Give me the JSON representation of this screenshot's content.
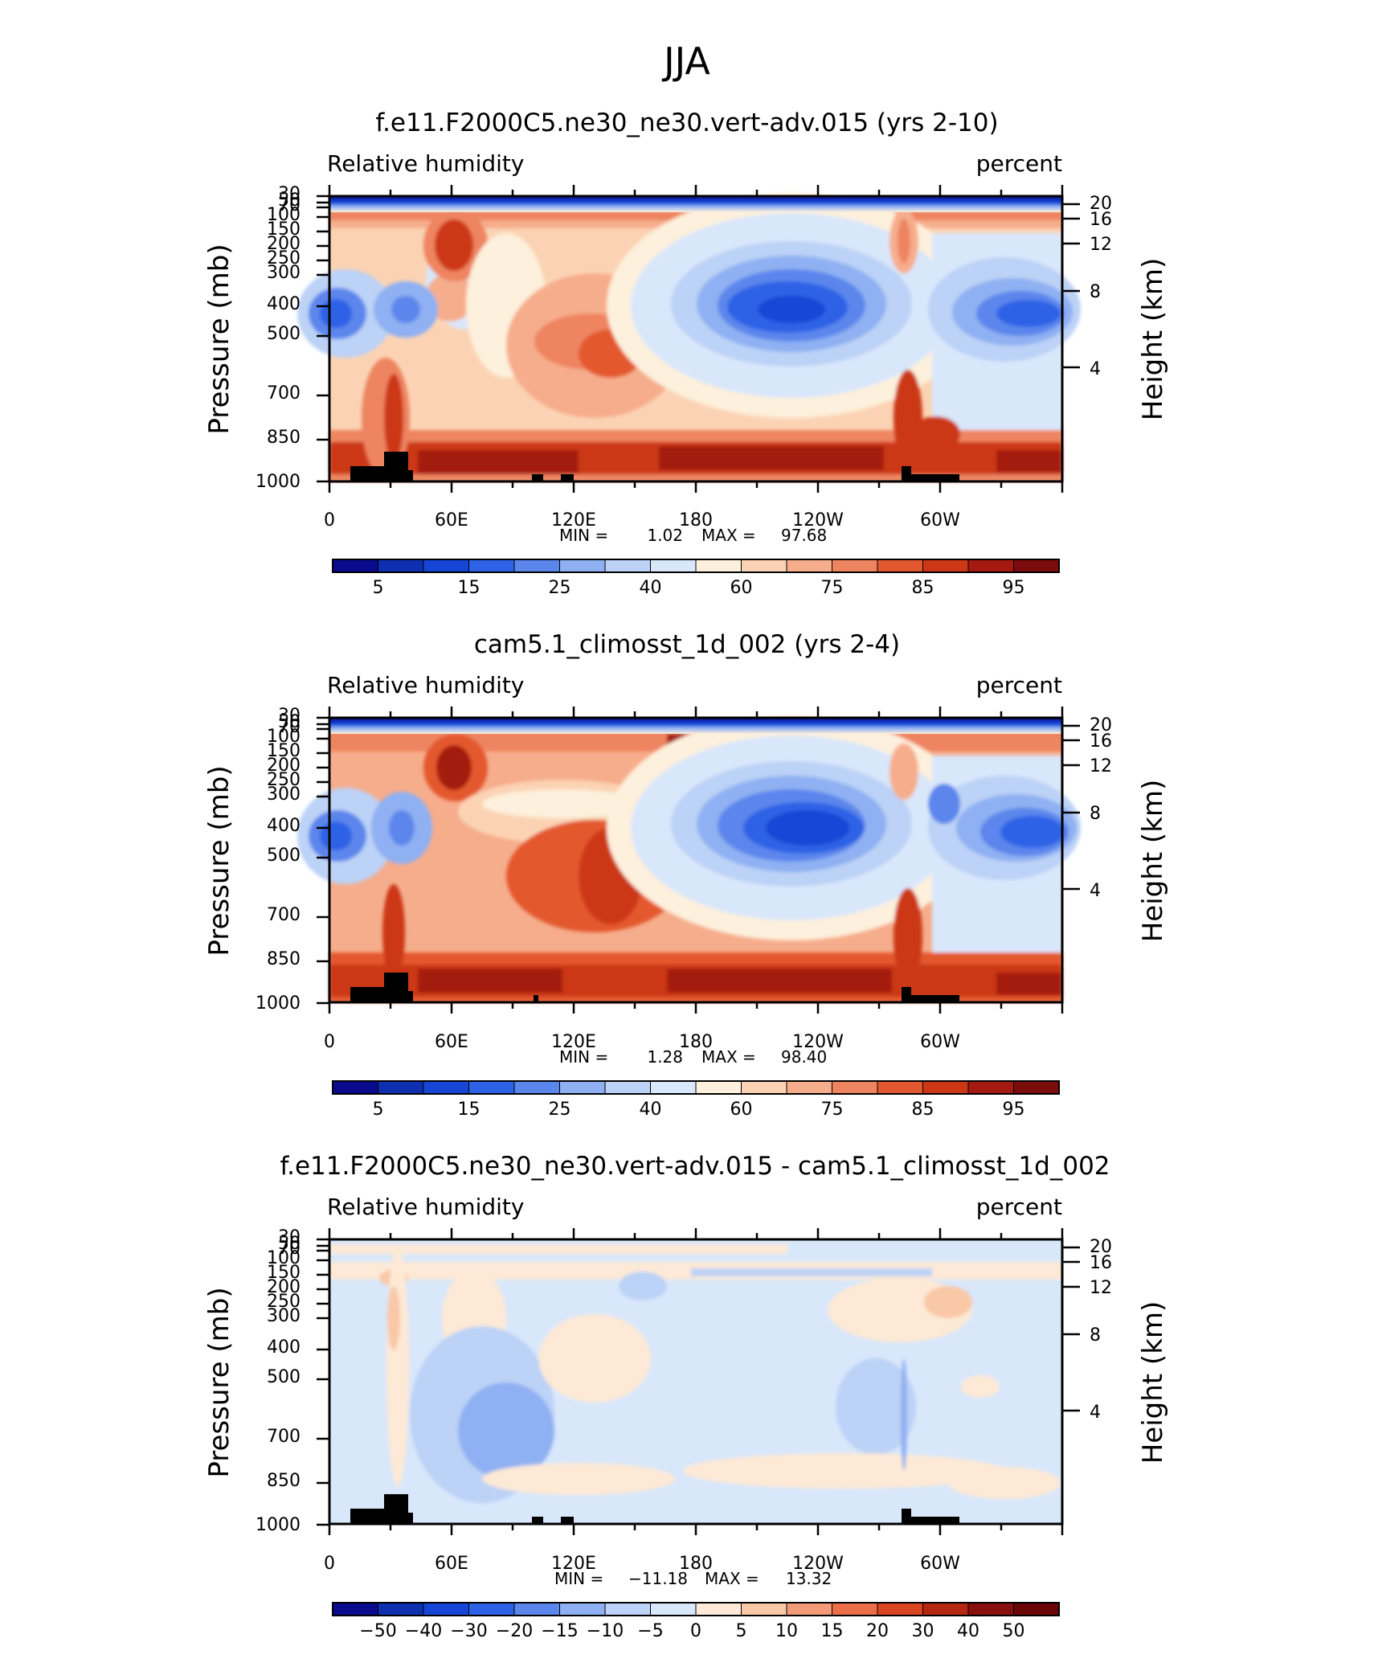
{
  "figure": {
    "title": "JJA"
  },
  "palettes": {
    "abs": [
      "#0a0a8c",
      "#0d2fb0",
      "#1546d6",
      "#2e62e6",
      "#5b86ec",
      "#8fb0f2",
      "#bcd2f6",
      "#d9e7fb",
      "#fdf0dc",
      "#fbd3b4",
      "#f6ad8c",
      "#ee8460",
      "#e4582f",
      "#cc3716",
      "#a41a10",
      "#7c0b0b"
    ],
    "diff": [
      "#0a0a8c",
      "#0d2fb0",
      "#1546d6",
      "#2e62e6",
      "#5b86ec",
      "#8fb0f2",
      "#bcd2f6",
      "#d9e7fb",
      "#fde9d6",
      "#f9c8a7",
      "#f39a78",
      "#ea6e48",
      "#d84520",
      "#b42712",
      "#8a1010",
      "#6b0606"
    ]
  },
  "chart_data": [
    {
      "type": "heatmap",
      "title": "f.e11.F2000C5.ne30_ne30.vert-adv.015 (yrs 2-10)",
      "left_label": "Relative  humidity",
      "right_label": "percent",
      "ylabel": "Pressure  (mb)",
      "y2label": "Height  (km)",
      "x_ticks": [
        "0",
        "60E",
        "120E",
        "180",
        "120W",
        "60W"
      ],
      "y_ticks": [
        "30",
        "50",
        "70",
        "100",
        "150",
        "200",
        "250",
        "300",
        "400",
        "500",
        "700",
        "850",
        "1000"
      ],
      "y2_ticks": [
        "20",
        "16",
        "12",
        "8",
        "4"
      ],
      "min": "1.02",
      "max": "97.68",
      "stats": {
        "min_label": "MIN =",
        "min": "1.02",
        "max_label": "MAX =",
        "max": "97.68"
      },
      "colorbar_labels": [
        "5",
        "15",
        "25",
        "40",
        "60",
        "75",
        "85",
        "95"
      ],
      "palette": "abs"
    },
    {
      "type": "heatmap",
      "title": "cam5.1_climosst_1d_002 (yrs 2-4)",
      "left_label": "Relative  humidity",
      "right_label": "percent",
      "ylabel": "Pressure  (mb)",
      "y2label": "Height  (km)",
      "x_ticks": [
        "0",
        "60E",
        "120E",
        "180",
        "120W",
        "60W"
      ],
      "y_ticks": [
        "30",
        "50",
        "70",
        "100",
        "150",
        "200",
        "250",
        "300",
        "400",
        "500",
        "700",
        "850",
        "1000"
      ],
      "y2_ticks": [
        "20",
        "16",
        "12",
        "8",
        "4"
      ],
      "min": "1.28",
      "max": "98.40",
      "stats": {
        "min_label": "MIN =",
        "min": "1.28",
        "max_label": "MAX =",
        "max": "98.40"
      },
      "colorbar_labels": [
        "5",
        "15",
        "25",
        "40",
        "60",
        "75",
        "85",
        "95"
      ],
      "palette": "abs"
    },
    {
      "type": "heatmap",
      "title": "f.e11.F2000C5.ne30_ne30.vert-adv.015 - cam5.1_climosst_1d_002",
      "left_label": "Relative  humidity",
      "right_label": "percent",
      "ylabel": "Pressure  (mb)",
      "y2label": "Height  (km)",
      "x_ticks": [
        "0",
        "60E",
        "120E",
        "180",
        "120W",
        "60W"
      ],
      "y_ticks": [
        "30",
        "50",
        "70",
        "100",
        "150",
        "200",
        "250",
        "300",
        "400",
        "500",
        "700",
        "850",
        "1000"
      ],
      "y2_ticks": [
        "20",
        "16",
        "12",
        "8",
        "4"
      ],
      "min": "−11.18",
      "max": "13.32",
      "stats": {
        "min_label": "MIN =",
        "min": "−11.18",
        "max_label": "MAX =",
        "max": "13.32"
      },
      "colorbar_labels": [
        "−50",
        "−40",
        "−30",
        "−20",
        "−15",
        "−10",
        "−5",
        "0",
        "5",
        "10",
        "15",
        "20",
        "30",
        "40",
        "50"
      ],
      "palette": "diff"
    }
  ]
}
